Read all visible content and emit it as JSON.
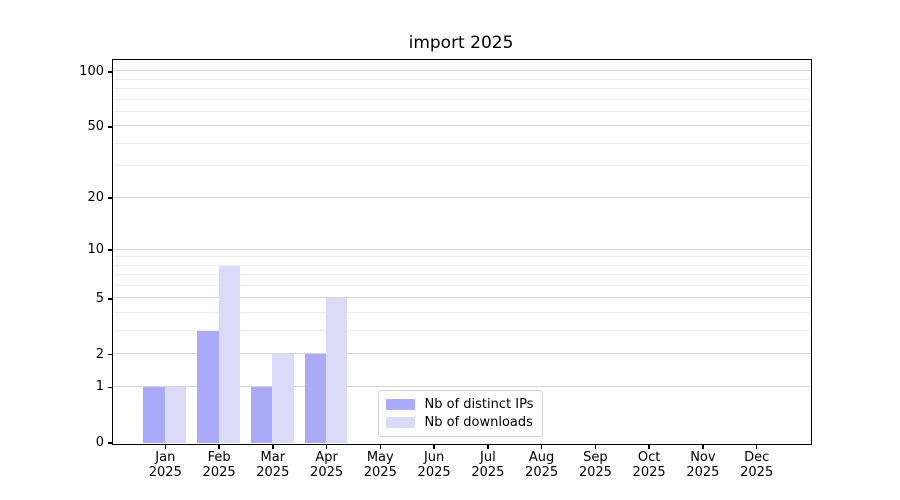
{
  "window": {
    "background_color": "#ffffff"
  },
  "chart_data": {
    "type": "bar",
    "title": "import 2025",
    "categories": [
      "Jan 2025",
      "Feb 2025",
      "Mar 2025",
      "Apr 2025",
      "May 2025",
      "Jun 2025",
      "Jul 2025",
      "Aug 2025",
      "Sep 2025",
      "Oct 2025",
      "Nov 2025",
      "Dec 2025"
    ],
    "series": [
      {
        "name": "Nb of distinct IPs",
        "color": "#aaaaf8",
        "values": [
          1,
          3,
          1,
          2,
          0,
          0,
          0,
          0,
          0,
          0,
          0,
          0
        ]
      },
      {
        "name": "Nb of downloads",
        "color": "#dbdbf9",
        "values": [
          1,
          8,
          2,
          5,
          0,
          0,
          0,
          0,
          0,
          0,
          0,
          0
        ]
      }
    ],
    "xlabel": "",
    "ylabel": "",
    "yscale": "log1p",
    "ylim": [
      0,
      116
    ],
    "yticks": [
      0,
      1,
      2,
      5,
      10,
      20,
      50,
      100
    ],
    "minor_gridlines": [
      3,
      4,
      6,
      7,
      8,
      9,
      30,
      40,
      60,
      70,
      80,
      90
    ],
    "grid": {
      "major_color": "#d4d4d4",
      "minor_color": "#ededed",
      "visible": true
    },
    "legend": {
      "position": "lower-center",
      "border_color": "#d5d5d5"
    },
    "axis_color": "#000000"
  }
}
